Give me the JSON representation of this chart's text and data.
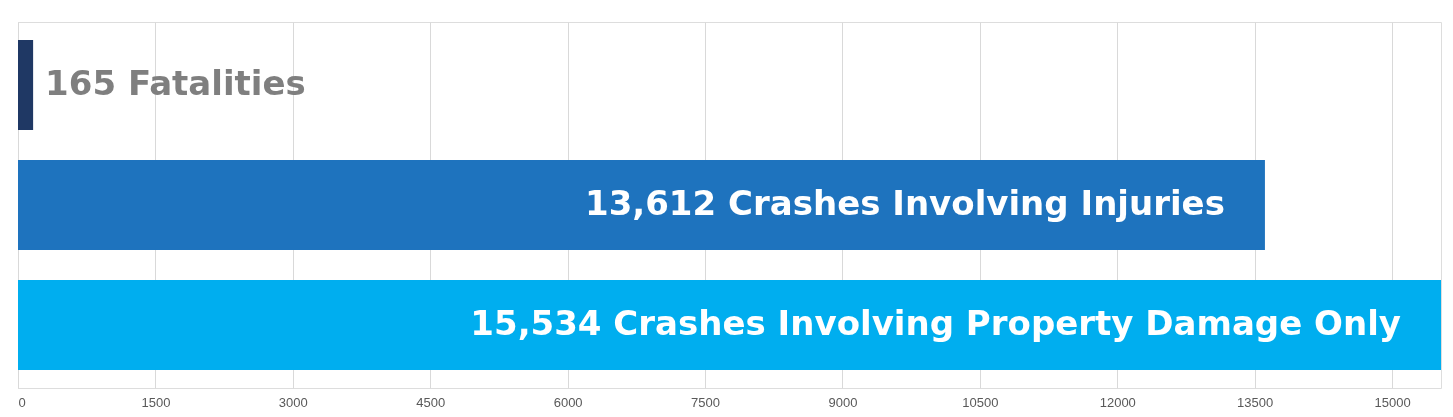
{
  "chart_data": {
    "type": "bar",
    "orientation": "horizontal",
    "categories": [
      null,
      null,
      null
    ],
    "values": [
      165,
      13612,
      15534
    ],
    "colors": [
      "#1f3864",
      "#1e73be",
      "#00aeef"
    ],
    "value_labels": [
      "165 Fatalities",
      "13,612 Crashes Involving  Injuries",
      "15,534 Crashes Involving Property Damage Only"
    ],
    "xlim": [
      0,
      15534
    ],
    "xticks": [
      0,
      1500,
      3000,
      4500,
      6000,
      7500,
      9000,
      10500,
      12000,
      13500,
      15000
    ],
    "grid": "x",
    "tick_labels": "x",
    "legend": false
  }
}
